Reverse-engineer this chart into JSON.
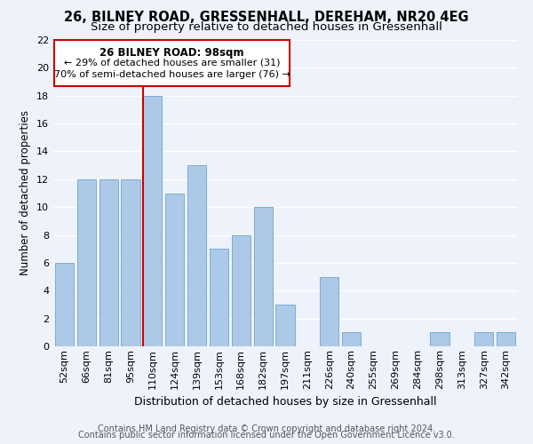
{
  "title1": "26, BILNEY ROAD, GRESSENHALL, DEREHAM, NR20 4EG",
  "title2": "Size of property relative to detached houses in Gressenhall",
  "xlabel": "Distribution of detached houses by size in Gressenhall",
  "ylabel": "Number of detached properties",
  "bar_labels": [
    "52sqm",
    "66sqm",
    "81sqm",
    "95sqm",
    "110sqm",
    "124sqm",
    "139sqm",
    "153sqm",
    "168sqm",
    "182sqm",
    "197sqm",
    "211sqm",
    "226sqm",
    "240sqm",
    "255sqm",
    "269sqm",
    "284sqm",
    "298sqm",
    "313sqm",
    "327sqm",
    "342sqm"
  ],
  "bar_values": [
    6,
    12,
    12,
    12,
    18,
    11,
    13,
    7,
    8,
    10,
    3,
    0,
    5,
    1,
    0,
    0,
    0,
    1,
    0,
    1,
    1
  ],
  "bar_color": "#adc9e8",
  "bar_edge_color": "#7aadd4",
  "highlight_color": "#cc0000",
  "annotation_title": "26 BILNEY ROAD: 98sqm",
  "annotation_line1": "← 29% of detached houses are smaller (31)",
  "annotation_line2": "70% of semi-detached houses are larger (76) →",
  "annotation_box_color": "#ffffff",
  "annotation_box_edge": "#cc0000",
  "vline_bar_index": 4,
  "ylim": [
    0,
    22
  ],
  "yticks": [
    0,
    2,
    4,
    6,
    8,
    10,
    12,
    14,
    16,
    18,
    20,
    22
  ],
  "footer1": "Contains HM Land Registry data © Crown copyright and database right 2024.",
  "footer2": "Contains public sector information licensed under the Open Government Licence v3.0.",
  "background_color": "#eef2fb",
  "grid_color": "#ffffff",
  "title1_fontsize": 10.5,
  "title2_fontsize": 9.5,
  "xlabel_fontsize": 9,
  "ylabel_fontsize": 8.5,
  "tick_fontsize": 8,
  "footer_fontsize": 7
}
